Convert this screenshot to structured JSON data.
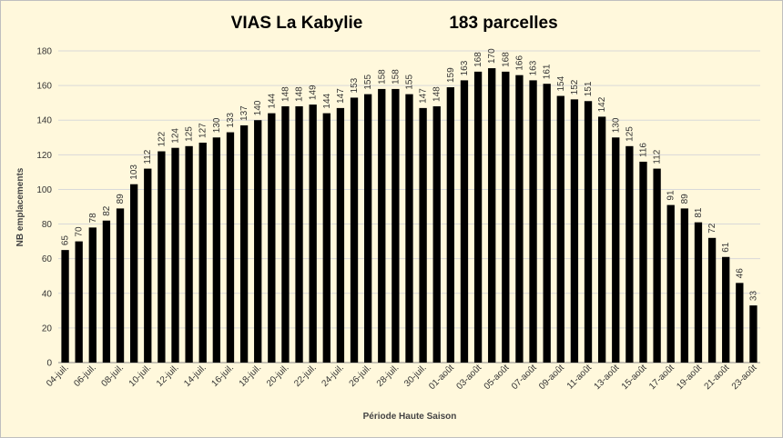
{
  "chart_data": {
    "type": "bar",
    "title_left": "VIAS La Kabylie",
    "title_right": "183 parcelles",
    "xlabel": "Période Haute Saison",
    "ylabel": "NB emplacements",
    "ylim": [
      0,
      180
    ],
    "yticks": [
      "0",
      "20",
      "40",
      "60",
      "80",
      "100",
      "120",
      "140",
      "160",
      "180"
    ],
    "grid": true,
    "bar_color": "#000000",
    "categories": [
      "04-juil.",
      "05-juil.",
      "06-juil.",
      "07-juil.",
      "08-juil.",
      "09-juil.",
      "10-juil.",
      "11-juil.",
      "12-juil.",
      "13-juil.",
      "14-juil.",
      "15-juil.",
      "16-juil.",
      "17-juil.",
      "18-juil.",
      "19-juil.",
      "20-juil.",
      "21-juil.",
      "22-juil.",
      "23-juil.",
      "24-juil.",
      "25-juil.",
      "26-juil.",
      "27-juil.",
      "28-juil.",
      "29-juil.",
      "30-juil.",
      "31-juil.",
      "01-août",
      "02-août",
      "03-août",
      "04-août",
      "05-août",
      "06-août",
      "07-août",
      "08-août",
      "09-août",
      "10-août",
      "11-août",
      "12-août",
      "13-août",
      "14-août",
      "15-août",
      "16-août",
      "17-août",
      "18-août",
      "19-août",
      "20-août",
      "21-août",
      "22-août",
      "23-août"
    ],
    "tick_labels_shown": [
      "04-juil.",
      "06-juil.",
      "08-juil.",
      "10-juil.",
      "12-juil.",
      "14-juil.",
      "16-juil.",
      "18-juil.",
      "20-juil.",
      "22-juil.",
      "24-juil.",
      "26-juil.",
      "28-juil.",
      "30-juil.",
      "01-août",
      "03-août",
      "05-août",
      "07-août",
      "09-août",
      "11-août",
      "13-août",
      "15-août",
      "17-août",
      "19-août",
      "21-août",
      "23-août"
    ],
    "values": [
      65,
      70,
      78,
      82,
      89,
      103,
      112,
      122,
      124,
      125,
      127,
      130,
      133,
      137,
      140,
      144,
      148,
      148,
      149,
      144,
      147,
      153,
      155,
      158,
      158,
      155,
      147,
      148,
      159,
      163,
      168,
      170,
      168,
      166,
      163,
      161,
      154,
      152,
      151,
      142,
      130,
      125,
      116,
      112,
      91,
      89,
      81,
      72,
      61,
      46,
      33
    ]
  }
}
